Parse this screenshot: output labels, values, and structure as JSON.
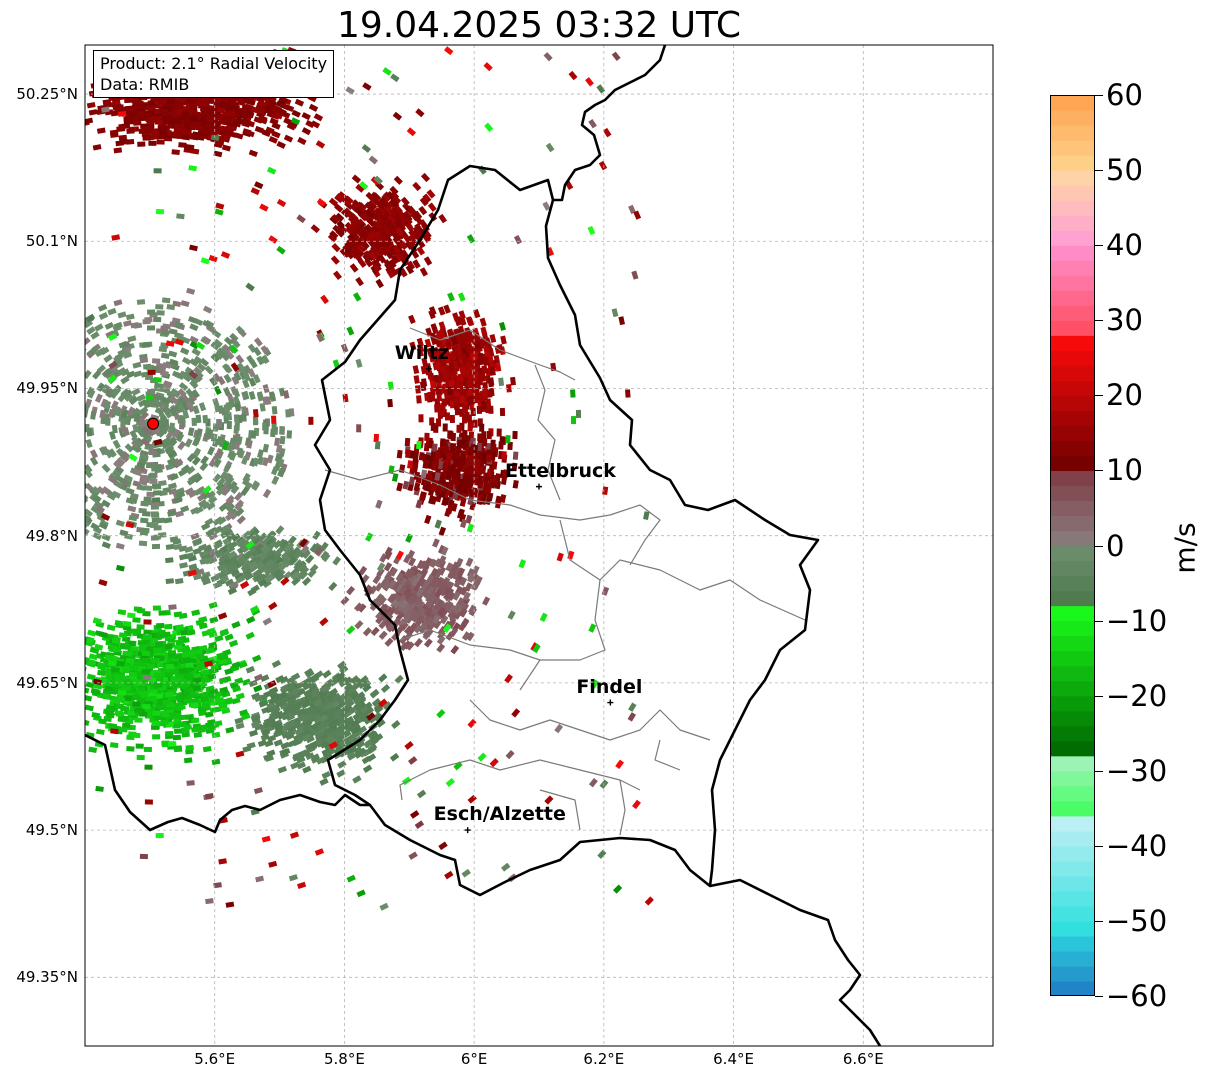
{
  "title": "19.04.2025 03:32 UTC",
  "info": {
    "product": "Product: 2.1° Radial Velocity",
    "data_source": "Data: RMIB"
  },
  "map_extent": {
    "lon_min": 5.4,
    "lon_max": 6.8,
    "lat_min": 49.28,
    "lat_max": 50.3
  },
  "lat_ticks": [
    {
      "value": 50.25,
      "label": "50.25°N"
    },
    {
      "value": 50.1,
      "label": "50.1°N"
    },
    {
      "value": 49.95,
      "label": "49.95°N"
    },
    {
      "value": 49.8,
      "label": "49.8°N"
    },
    {
      "value": 49.65,
      "label": "49.65°N"
    },
    {
      "value": 49.5,
      "label": "49.5°N"
    },
    {
      "value": 49.35,
      "label": "49.35°N"
    }
  ],
  "lon_ticks": [
    {
      "value": 5.6,
      "label": "5.6°E"
    },
    {
      "value": 5.8,
      "label": "5.8°E"
    },
    {
      "value": 6.0,
      "label": "6°E"
    },
    {
      "value": 6.2,
      "label": "6.2°E"
    },
    {
      "value": 6.4,
      "label": "6.4°E"
    },
    {
      "value": 6.6,
      "label": "6.6°E"
    }
  ],
  "cities": [
    {
      "name": "Wiltz",
      "lon": 5.93,
      "lat": 49.97
    },
    {
      "name": "Ettelbruck",
      "lon": 6.1,
      "lat": 49.85
    },
    {
      "name": "Findel",
      "lon": 6.21,
      "lat": 49.63
    },
    {
      "name": "Esch/Alzette",
      "lon": 5.99,
      "lat": 49.5
    }
  ],
  "radar_site": {
    "lon": 5.505,
    "lat": 49.914,
    "color": "#ff0000"
  },
  "colorbar": {
    "unit": "m/s",
    "min": -60,
    "max": 60,
    "ticks": [
      {
        "value": 60,
        "label": "60"
      },
      {
        "value": 50,
        "label": "50"
      },
      {
        "value": 40,
        "label": "40"
      },
      {
        "value": 30,
        "label": "30"
      },
      {
        "value": 20,
        "label": "20"
      },
      {
        "value": 10,
        "label": "10"
      },
      {
        "value": 0,
        "label": "0"
      },
      {
        "value": -10,
        "label": "−10"
      },
      {
        "value": -20,
        "label": "−20"
      },
      {
        "value": -30,
        "label": "−30"
      },
      {
        "value": -40,
        "label": "−40"
      },
      {
        "value": -50,
        "label": "−50"
      },
      {
        "value": -60,
        "label": "−60"
      }
    ],
    "bands": [
      {
        "from": 50,
        "to": 60,
        "colors": [
          "#fdd48d",
          "#ffa14f"
        ]
      },
      {
        "from": 40,
        "to": 50,
        "colors": [
          "#ff9cd6",
          "#ffd9a3"
        ]
      },
      {
        "from": 28,
        "to": 40,
        "colors": [
          "#ff4a5e",
          "#ff92cf"
        ]
      },
      {
        "from": 10,
        "to": 28,
        "colors": [
          "#6e0000",
          "#ff0b0b"
        ]
      },
      {
        "from": 0,
        "to": 10,
        "colors": [
          "#8a7f7f",
          "#7f3a44"
        ]
      },
      {
        "from": -8,
        "to": 0,
        "colors": [
          "#4b784b",
          "#6e8f6e"
        ]
      },
      {
        "from": -28,
        "to": -8,
        "colors": [
          "#006400",
          "#1bff1b"
        ]
      },
      {
        "from": -36,
        "to": -28,
        "colors": [
          "#3dff5a",
          "#a8f2c1"
        ]
      },
      {
        "from": -52,
        "to": -36,
        "colors": [
          "#28dede",
          "#c4f1f4"
        ]
      },
      {
        "from": -60,
        "to": -52,
        "colors": [
          "#2079c2",
          "#2bd0de"
        ]
      }
    ]
  }
}
